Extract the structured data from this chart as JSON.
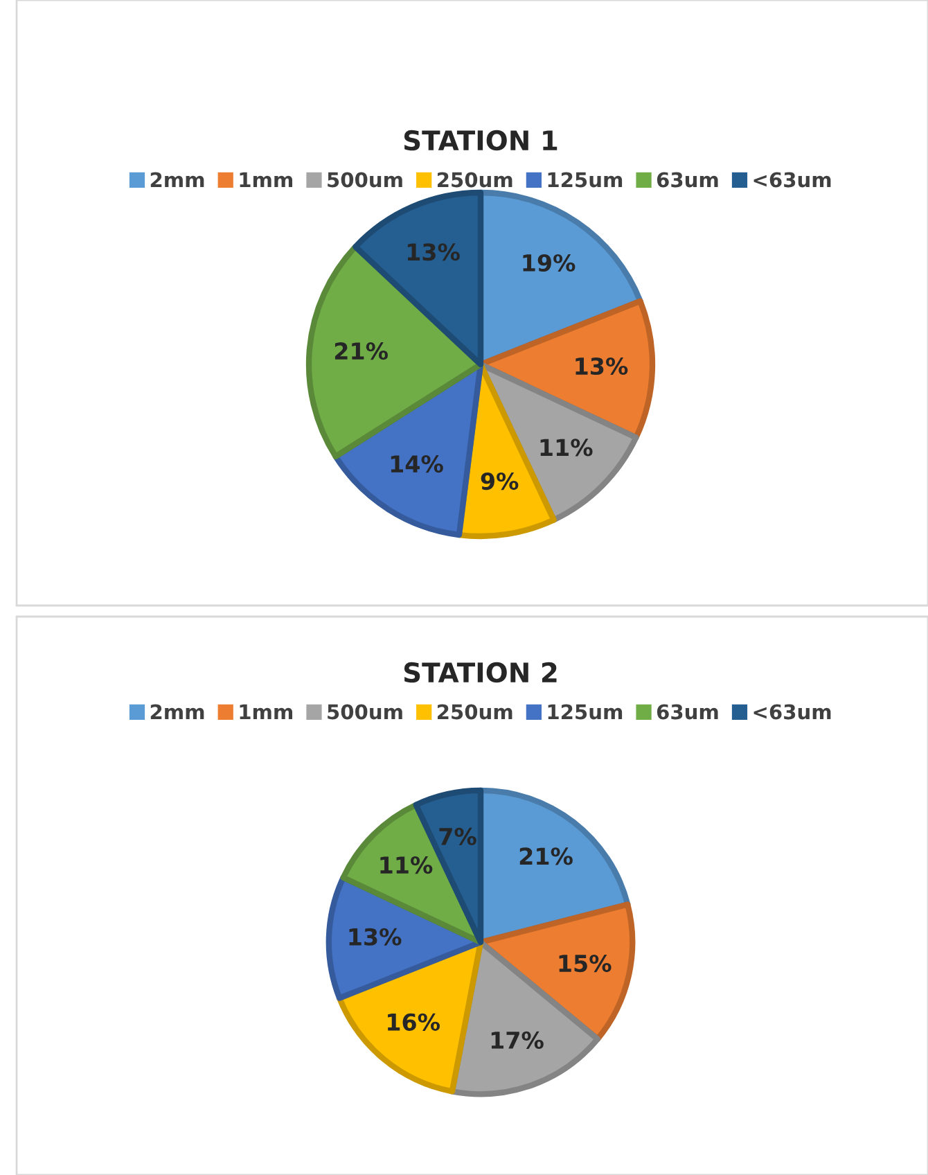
{
  "chart_data": [
    {
      "type": "pie",
      "title": "STATION 1",
      "categories": [
        "2mm",
        "1mm",
        "500um",
        "250um",
        "125um",
        "63um",
        "<63um"
      ],
      "values": [
        19,
        13,
        11,
        9,
        14,
        21,
        13
      ],
      "value_labels": [
        "19%",
        "13%",
        "11%",
        "9%",
        "14%",
        "21%",
        "13%"
      ],
      "colors": [
        "#5b9bd5",
        "#ed7d31",
        "#a5a5a5",
        "#ffc000",
        "#4472c4",
        "#70ad47",
        "#255e91"
      ],
      "legend": "top"
    },
    {
      "type": "pie",
      "title": "STATION 2",
      "categories": [
        "2mm",
        "1mm",
        "500um",
        "250um",
        "125um",
        "63um",
        "<63um"
      ],
      "values": [
        21,
        15,
        17,
        16,
        13,
        11,
        7
      ],
      "value_labels": [
        "21%",
        "15%",
        "17%",
        "16%",
        "13%",
        "11%",
        "7%"
      ],
      "colors": [
        "#5b9bd5",
        "#ed7d31",
        "#a5a5a5",
        "#ffc000",
        "#4472c4",
        "#70ad47",
        "#255e91"
      ],
      "legend": "top"
    }
  ]
}
